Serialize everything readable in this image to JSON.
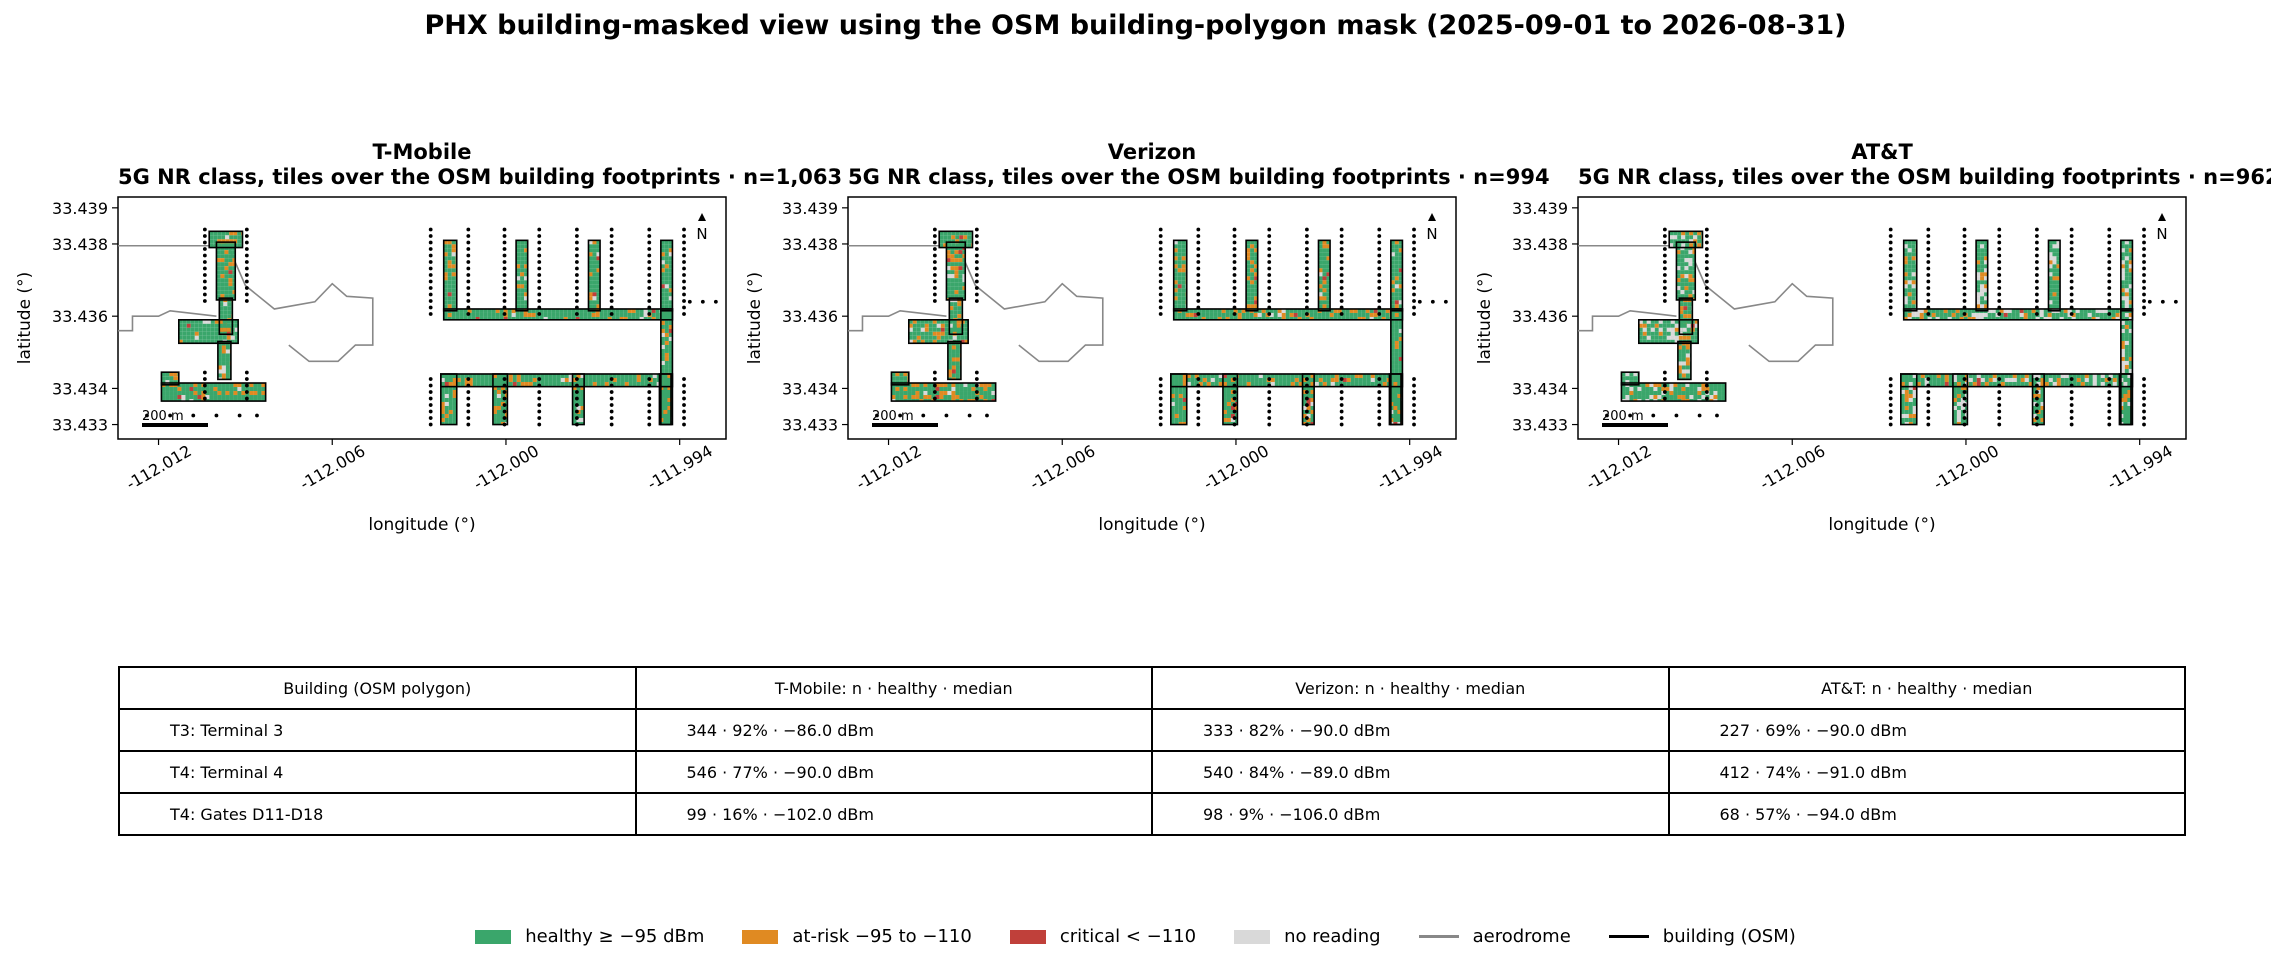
{
  "chart_data": {
    "type": "map-heatmap",
    "title": "PHX building-masked view using the OSM building-polygon mask (2025-09-01 to 2026-08-31)",
    "xlabel": "longitude (°)",
    "ylabel": "latitude (°)",
    "xlim": [
      -112.0134,
      -111.9924
    ],
    "ylim": [
      33.4326,
      33.4393
    ],
    "x_ticks": [
      -112.012,
      -112.006,
      -112.0,
      -111.994
    ],
    "x_tick_labels": [
      "-112.012",
      "-112.006",
      "-112.000",
      "-111.994"
    ],
    "y_ticks": [
      33.433,
      33.434,
      33.436,
      33.438,
      33.439
    ],
    "y_tick_labels": [
      "33.433",
      "33.434",
      "33.436",
      "33.438",
      "33.439"
    ],
    "north_label": "N",
    "scale_bar_label": "200 m",
    "panels": [
      {
        "title": "T-Mobile",
        "subtitle": "5G NR class, tiles over the OSM building footprints · n=1,063",
        "mix": {
          "healthy": 0.78,
          "at_risk": 0.15,
          "critical": 0.02,
          "none": 0.05
        }
      },
      {
        "title": "Verizon",
        "subtitle": "5G NR class, tiles over the OSM building footprints · n=994",
        "mix": {
          "healthy": 0.72,
          "at_risk": 0.2,
          "critical": 0.03,
          "none": 0.05
        }
      },
      {
        "title": "AT&T",
        "subtitle": "5G NR class, tiles over the OSM building footprints · n=962",
        "mix": {
          "healthy": 0.62,
          "at_risk": 0.16,
          "critical": 0.01,
          "none": 0.21
        }
      }
    ],
    "legend": [
      {
        "label": "healthy ≥ −95 dBm",
        "kind": "patch",
        "color": "#3aa66b"
      },
      {
        "label": "at-risk −95 to −110",
        "kind": "patch",
        "color": "#e08a22"
      },
      {
        "label": "critical < −110",
        "kind": "patch",
        "color": "#c0403a"
      },
      {
        "label": "no reading",
        "kind": "patch",
        "color": "#d9d9d9"
      },
      {
        "label": "aerodrome",
        "kind": "line",
        "color": "#888888"
      },
      {
        "label": "building (OSM)",
        "kind": "line",
        "color": "#000000"
      }
    ]
  },
  "table": {
    "headers": [
      "Building (OSM polygon)",
      "T-Mobile: n · healthy · median",
      "Verizon: n · healthy · median",
      "AT&T: n · healthy · median"
    ],
    "rows": [
      [
        "T3: Terminal 3",
        "344 · 92% · −86.0 dBm",
        "333 · 82% · −90.0 dBm",
        "227 · 69% · −90.0 dBm"
      ],
      [
        "T4: Terminal 4",
        "546 · 77% · −90.0 dBm",
        "540 · 84% · −89.0 dBm",
        "412 · 74% · −91.0 dBm"
      ],
      [
        "T4: Gates D11-D18",
        "99 · 16% · −102.0 dBm",
        "98 · 9% · −106.0 dBm",
        "68 · 57% · −94.0 dBm"
      ]
    ]
  }
}
